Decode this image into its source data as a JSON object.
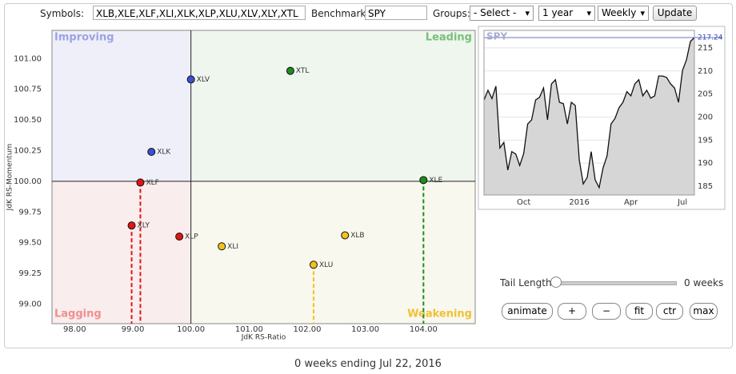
{
  "toolbar": {
    "symbols_label": "Symbols:",
    "symbols": "XLB,XLE,XLF,XLI,XLK,XLP,XLU,XLV,XLY,XTL",
    "benchmark_label": "Benchmark:",
    "benchmark": "SPY",
    "groups_label": "Groups:",
    "groups": "- Select -",
    "period": "1 year",
    "interval": "Weekly",
    "update": "Update"
  },
  "chart_data": [
    {
      "type": "scatter",
      "x_label": "JdK RS-Ratio",
      "y_label": "JdK RS-Momentum",
      "xlim": [
        97.61,
        104.89
      ],
      "ylim": [
        98.84,
        101.23
      ],
      "center_x": 100,
      "center_y": 100,
      "xticks": [
        {
          "value": 98,
          "label": "98.00"
        },
        {
          "value": 99,
          "label": "99.00"
        },
        {
          "value": 100,
          "label": "100.00"
        },
        {
          "value": 101,
          "label": "101.00"
        },
        {
          "value": 102,
          "label": "102.00"
        },
        {
          "value": 103,
          "label": "103.00"
        },
        {
          "value": 104,
          "label": "104.00"
        }
      ],
      "yticks": [
        {
          "value": 99,
          "label": "99.00"
        },
        {
          "value": 99.25,
          "label": "99.25"
        },
        {
          "value": 99.5,
          "label": "99.50"
        },
        {
          "value": 99.75,
          "label": "99.75"
        },
        {
          "value": 100,
          "label": "100.00"
        },
        {
          "value": 100.25,
          "label": "100.25"
        },
        {
          "value": 100.5,
          "label": "100.50"
        },
        {
          "value": 100.75,
          "label": "100.75"
        },
        {
          "value": 101,
          "label": "101.00"
        }
      ],
      "quadrants": [
        {
          "label": "Improving",
          "color": "#9ba3e3",
          "fill": "#efeff9"
        },
        {
          "label": "Leading",
          "color": "#79bf79",
          "fill": "#eef6ee"
        },
        {
          "label": "Lagging",
          "color": "#f08f8f",
          "fill": "#f9eded"
        },
        {
          "label": "Weakening",
          "color": "#efc233",
          "fill": "#f9f8ef"
        }
      ],
      "series": [
        {
          "name": "XTL",
          "color": "#1f8c1f",
          "x": [
            101.71
          ],
          "values": [
            100.9
          ]
        },
        {
          "name": "XLV",
          "color": "#3b50d4",
          "x": [
            100.0
          ],
          "values": [
            100.83
          ]
        },
        {
          "name": "XLK",
          "color": "#3b50d4",
          "x": [
            99.32
          ],
          "values": [
            100.24
          ]
        },
        {
          "name": "XLE",
          "color": "#1f8c1f",
          "x": [
            104.0
          ],
          "values": [
            100.01
          ],
          "drop_line": true
        },
        {
          "name": "XLF",
          "color": "#e21414",
          "x": [
            99.13
          ],
          "values": [
            99.99
          ],
          "drop_line": true
        },
        {
          "name": "XLY",
          "color": "#e21414",
          "x": [
            98.98
          ],
          "values": [
            99.64
          ],
          "drop_line": true
        },
        {
          "name": "XLP",
          "color": "#e21414",
          "x": [
            99.8
          ],
          "values": [
            99.55
          ]
        },
        {
          "name": "XLI",
          "color": "#f2c21d",
          "x": [
            100.53
          ],
          "values": [
            99.47
          ]
        },
        {
          "name": "XLB",
          "color": "#f2c21d",
          "x": [
            102.65
          ],
          "values": [
            99.56
          ]
        },
        {
          "name": "XLU",
          "color": "#f2c21d",
          "x": [
            102.11
          ],
          "values": [
            99.32
          ],
          "drop_line": true
        }
      ]
    },
    {
      "type": "area",
      "title": "SPY",
      "color": "#111111",
      "fill": "#d6d6d6",
      "ylim": [
        183.1,
        218.8
      ],
      "yticks": [
        185,
        190,
        195,
        200,
        205,
        210,
        215
      ],
      "categories": [
        null,
        null,
        null,
        null,
        null,
        null,
        null,
        null,
        null,
        null,
        "Oct",
        null,
        null,
        null,
        null,
        null,
        null,
        null,
        null,
        null,
        null,
        null,
        null,
        null,
        "2016",
        null,
        null,
        null,
        null,
        null,
        null,
        null,
        null,
        null,
        null,
        null,
        null,
        "Apr",
        null,
        null,
        null,
        null,
        null,
        null,
        null,
        null,
        null,
        null,
        null,
        null,
        "Jul",
        null,
        null,
        null
      ],
      "values": [
        203.7,
        205.8,
        204,
        206.7,
        193.3,
        194.5,
        188.5,
        192.5,
        192,
        189.5,
        192.1,
        198.5,
        199.4,
        203.7,
        204.3,
        206.3,
        199.4,
        207.2,
        208.1,
        203.2,
        202.9,
        198.5,
        203.2,
        202.5,
        190.7,
        185.5,
        186.9,
        192.5,
        186.4,
        184.7,
        189,
        191.6,
        198.5,
        199.7,
        202,
        203.2,
        205.5,
        204.6,
        207.2,
        208.1,
        204.6,
        205.8,
        204.1,
        204.6,
        208.9,
        208.9,
        208.6,
        207.2,
        206.3,
        203.2,
        210.1,
        212.4,
        216.4,
        217.24
      ]
    }
  ],
  "controls": {
    "tail_label": "Tail Length:",
    "tail_value": "0 weeks",
    "buttons": [
      "animate",
      "+",
      "−",
      "fit",
      "ctr",
      "max"
    ]
  },
  "footer": "0 weeks ending Jul 22, 2016"
}
